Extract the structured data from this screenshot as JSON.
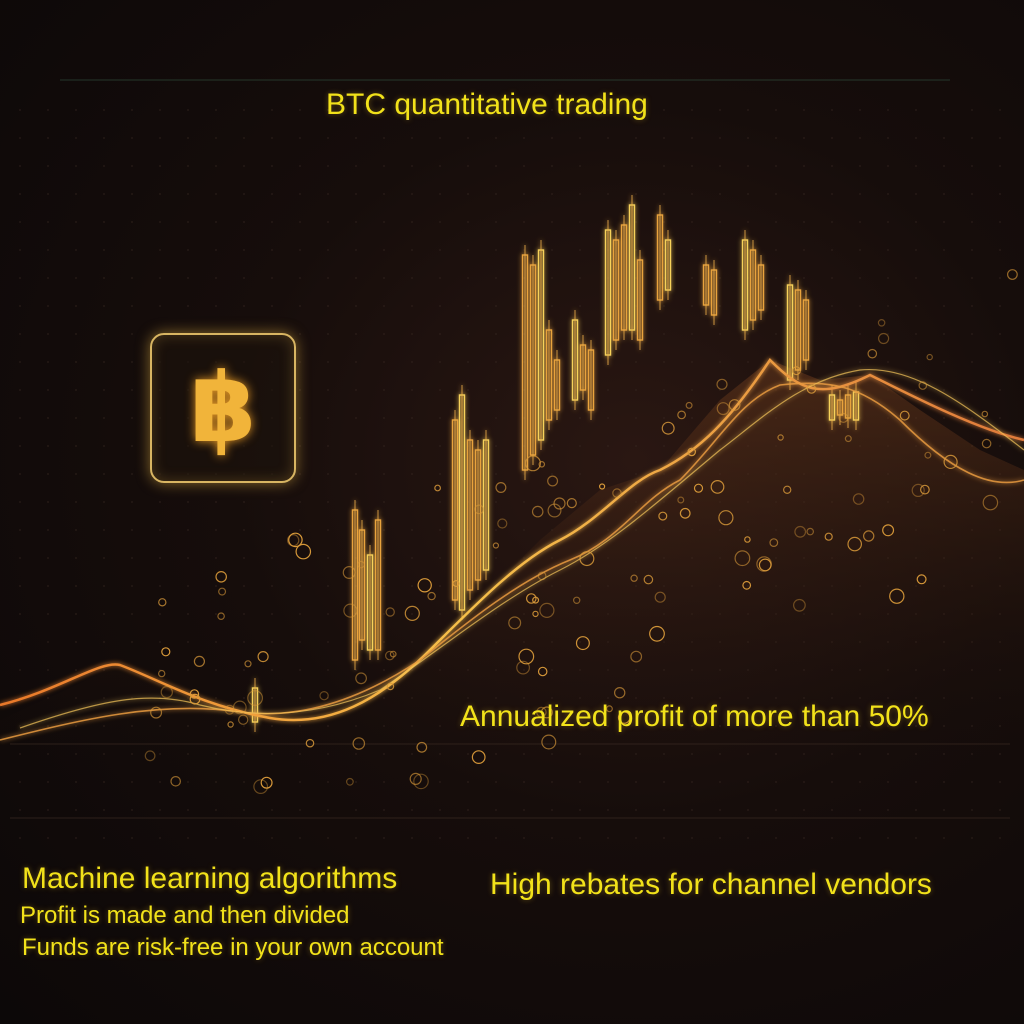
{
  "title": "BTC quantitative trading",
  "logo": {
    "icon": "bitcoin-icon",
    "glyph": "฿"
  },
  "profit_text": "Annualized profit of more than 50%",
  "features": {
    "machine_learning": "Machine learning algorithms",
    "profit_divided": "Profit is made and then divided",
    "funds_safe": "Funds are risk-free in your own account"
  },
  "rebates_text": "High rebates for channel vendors",
  "colors": {
    "text": "#f2e21a",
    "glow": "#f1b43a",
    "line": "#f0a63a",
    "background": "#120b0a"
  }
}
